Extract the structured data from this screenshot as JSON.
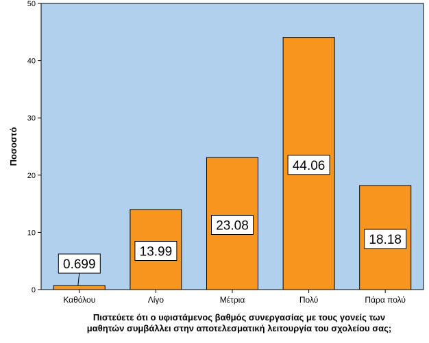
{
  "chart_data": {
    "type": "bar",
    "categories": [
      "Καθόλου",
      "Λίγο",
      "Μέτρια",
      "Πολύ",
      "Πάρα πολύ"
    ],
    "values": [
      0.699,
      13.99,
      23.08,
      44.06,
      18.18
    ],
    "data_labels": [
      "0.699",
      "13.99",
      "23.08",
      "44.06",
      "18.18"
    ],
    "ylabel": "Ποσοστό",
    "xlabel_lines": [
      "Πιστεύετε ότι ο υφιστάμενος βαθμός συνεργασίας με τους γονείς των",
      "μαθητών συμβάλλει στην αποτελεσματική λειτουργία του σχολείου σας;"
    ],
    "ylim": [
      0,
      50
    ],
    "yticks": [
      0,
      10,
      20,
      30,
      40,
      50
    ],
    "grid": false,
    "colors": {
      "plot_bg": "#b0d0ee",
      "bar": "#f7961e",
      "bar_stroke": "#000000"
    }
  }
}
